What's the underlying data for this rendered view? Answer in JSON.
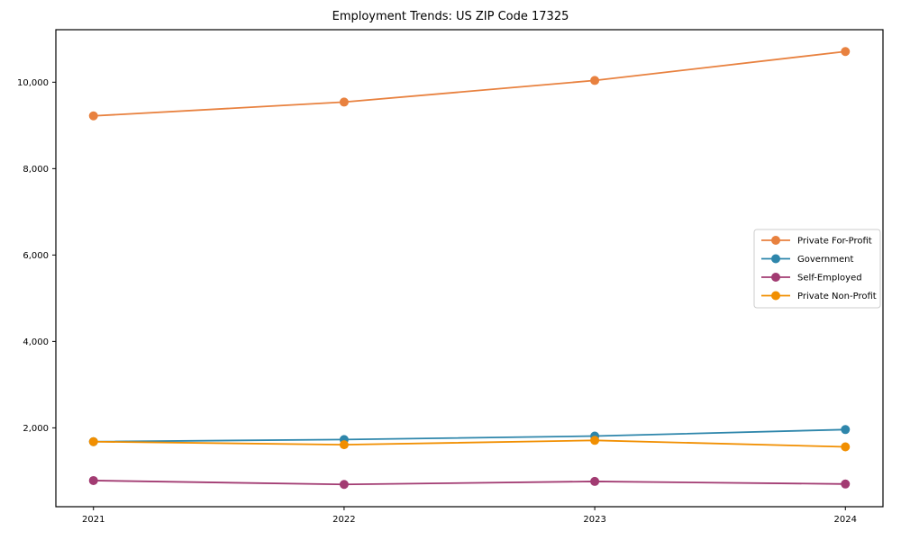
{
  "figure": {
    "background": "#ffffff",
    "text_color": "#000000",
    "axis_color": "#000000",
    "legend_border_color": "#cccccc"
  },
  "chart_data": {
    "type": "line",
    "title": "Employment Trends: US ZIP Code 17325",
    "xlabel": "",
    "ylabel": "",
    "grid": false,
    "legend_position": "center-right",
    "x": [
      2021,
      2022,
      2023,
      2024
    ],
    "x_tick_labels": [
      "2021",
      "2022",
      "2023",
      "2024"
    ],
    "yticks": [
      2000,
      4000,
      6000,
      8000,
      10000
    ],
    "ytick_labels": [
      "2,000",
      "4,000",
      "6,000",
      "8,000",
      "10,000"
    ],
    "xlim": [
      2020.85,
      2024.15
    ],
    "ylim": [
      175,
      11215
    ],
    "series": [
      {
        "name": "Private For-Profit",
        "color": "#E8813F",
        "values": [
          9220,
          9540,
          10040,
          10710
        ]
      },
      {
        "name": "Government",
        "color": "#2E86AB",
        "values": [
          1680,
          1730,
          1810,
          1960
        ]
      },
      {
        "name": "Self-Employed",
        "color": "#A23B72",
        "values": [
          780,
          690,
          760,
          700
        ]
      },
      {
        "name": "Private Non-Profit",
        "color": "#F18F01",
        "values": [
          1680,
          1610,
          1710,
          1560
        ]
      }
    ]
  }
}
